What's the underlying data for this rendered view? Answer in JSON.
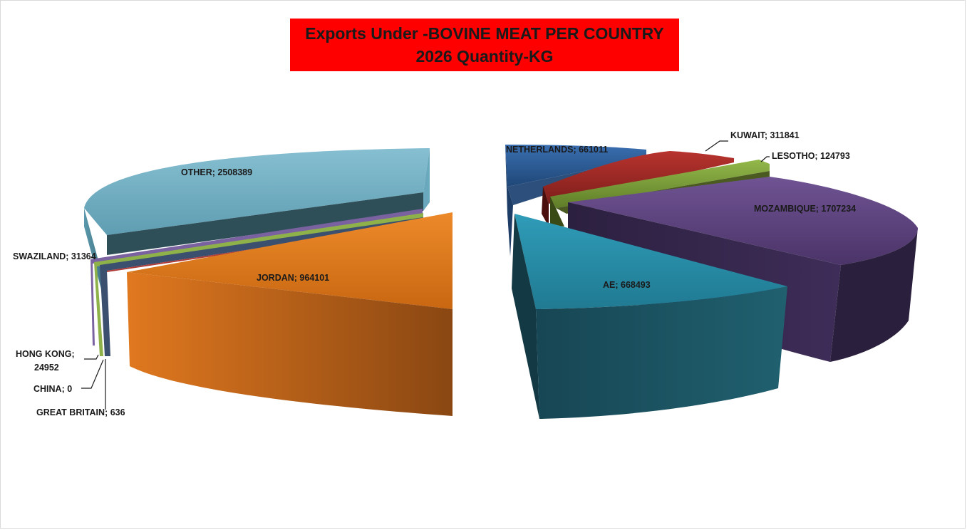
{
  "chart_data": {
    "type": "pie",
    "title_lines": [
      "Exports Under -BOVINE MEAT PER COUNTRY",
      "2026  Quantity-KG"
    ],
    "style": "3d-exploded",
    "slices": [
      {
        "name": "NETHERLANDS",
        "value": 661011,
        "label": "NETHERLANDS; 661011",
        "color": "#2c5d9a"
      },
      {
        "name": "KUWAIT",
        "value": 311841,
        "label": "KUWAIT; 311841",
        "color": "#9c2a26"
      },
      {
        "name": "LESOTHO",
        "value": 124793,
        "label": "LESOTHO; 124793",
        "color": "#7ea23b"
      },
      {
        "name": "MOZAMBIQUE",
        "value": 1707234,
        "label": "MOZAMBIQUE; 1707234",
        "color": "#5e447e"
      },
      {
        "name": "AE",
        "value": 668493,
        "label": "AE; 668493",
        "color": "#2a8fa8"
      },
      {
        "name": "JORDAN",
        "value": 964101,
        "label": "JORDAN; 964101",
        "color": "#e0781f"
      },
      {
        "name": "GREAT BRITAIN",
        "value": 636,
        "label": "GREAT BRITAIN; 636",
        "color": "#4a6a9a"
      },
      {
        "name": "CHINA",
        "value": 0,
        "label": "CHINA; 0",
        "color": "#b03a36"
      },
      {
        "name": "HONG KONG",
        "value": 24952,
        "label_lines": [
          "HONG KONG;",
          "24952"
        ],
        "color": "#8fb14a"
      },
      {
        "name": "SWAZILAND",
        "value": 31364,
        "label": "SWAZILAND; 31364",
        "color": "#7a62a0"
      },
      {
        "name": "OTHER",
        "value": 2508389,
        "label": "OTHER; 2508389",
        "color": "#79b4c8"
      }
    ],
    "legend": "none"
  }
}
